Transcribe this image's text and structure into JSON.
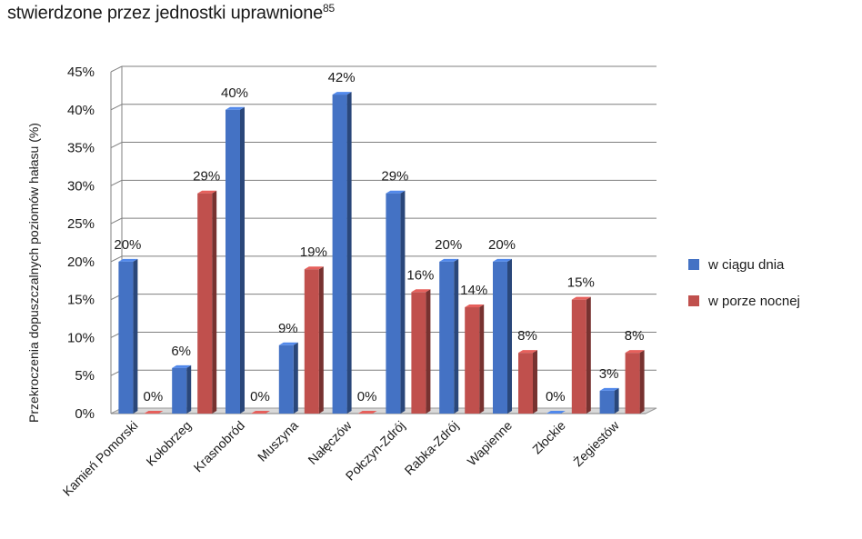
{
  "caption": {
    "text": "stwierdzone przez jednostki uprawnione",
    "footnote": "85"
  },
  "chart_data": {
    "type": "bar",
    "categories": [
      "Kamień Pomorski",
      "Kołobrzeg",
      "Krasnobród",
      "Muszyna",
      "Nałęczów",
      "Połczyn-Zdrój",
      "Rabka-Zdrój",
      "Wapienne",
      "Złockie",
      "Żegiestów"
    ],
    "series": [
      {
        "name": "w ciągu dnia",
        "values": [
          20,
          6,
          40,
          9,
          42,
          29,
          20,
          20,
          0,
          3
        ],
        "labels": [
          "20%",
          "6%",
          "40%",
          "9%",
          "42%",
          "29%",
          "20%",
          "20%",
          "0%",
          "3%"
        ],
        "color": "#4472C4"
      },
      {
        "name": "w porze nocnej",
        "values": [
          0,
          29,
          0,
          19,
          0,
          16,
          14,
          8,
          15,
          8
        ],
        "labels": [
          "0%",
          "29%",
          "0%",
          "19%",
          "0%",
          "16%",
          "14%",
          "8%",
          "15%",
          "8%"
        ],
        "color": "#C0504D"
      }
    ],
    "ylabel": "Przekroczenia dopuszczalnych poziomów hałasu (%)",
    "xlabel": "",
    "ylim": [
      0,
      45
    ],
    "yticks": [
      "0%",
      "5%",
      "10%",
      "15%",
      "20%",
      "25%",
      "30%",
      "35%",
      "40%",
      "45%"
    ],
    "grid": true,
    "legend_position": "right"
  }
}
